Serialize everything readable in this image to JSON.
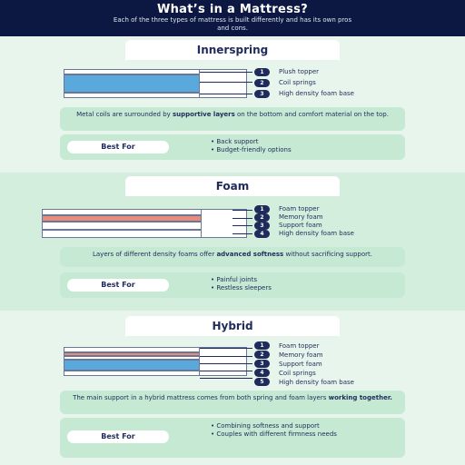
{
  "header": {
    "title": "What’s in a Mattress?",
    "subtitle": "Each of the three types of mattress is built differently and has its own pros and cons."
  },
  "sections": [
    {
      "name": "Innerspring",
      "layers": [
        "Plush topper",
        "Coil springs",
        "High density foam base"
      ],
      "description_pre": "Metal coils are surrounded by ",
      "description_bold": "supportive layers",
      "description_post": " on the bottom and comfort material on the top.",
      "best_for_label": "Best For",
      "best_for": [
        "Back support",
        "Budget-friendly options"
      ]
    },
    {
      "name": "Foam",
      "layers": [
        "Foam topper",
        "Memory foam",
        "Support foam",
        "High density foam base"
      ],
      "description_pre": "Layers of different density foams offer ",
      "description_bold": "advanced softness",
      "description_post": " without sacrificing support.",
      "best_for_label": "Best For",
      "best_for": [
        "Painful joints",
        "Restless sleepers"
      ]
    },
    {
      "name": "Hybrid",
      "layers": [
        "Foam topper",
        "Memory foam",
        "Support foam",
        "Coil springs",
        "High density foam base"
      ],
      "description_pre": "The main support in a hybrid mattress comes from both spring and foam layers ",
      "description_bold": "working together.",
      "description_post": "",
      "best_for_label": "Best For",
      "best_for": [
        "Combining softness and support",
        "Couples with different firmness needs"
      ]
    }
  ],
  "colors": {
    "navy": "#0d1842",
    "text": "#1f2b5a",
    "mint": "#e8f5ec",
    "panel": "#c6e9d4",
    "coil_blue": "#5aa9dc",
    "memory_pink": "#e98a7c",
    "foam_white": "#ffffff"
  }
}
